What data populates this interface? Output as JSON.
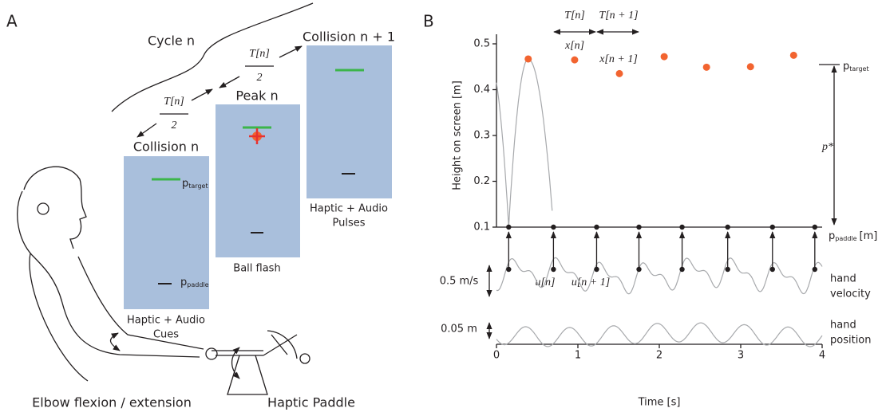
{
  "panel_a": {
    "label": "A",
    "cycle": "Cycle n",
    "collision_next": "Collision n + 1",
    "half_period_1": {
      "numerator": "T[n]",
      "denominator": "2"
    },
    "half_period_2": {
      "numerator": "T[n]",
      "denominator": "2"
    },
    "peak": "Peak n",
    "collision": "Collision n",
    "target": {
      "main": "p",
      "sub": "target"
    },
    "paddle": {
      "main": "p",
      "sub": "paddle"
    },
    "cues": [
      "Haptic + Audio",
      "Cues"
    ],
    "flash": "Ball flash",
    "pulses": [
      "Haptic + Audio",
      "Pulses"
    ],
    "elbow": "Elbow flexion / extension",
    "device": "Haptic Paddle"
  },
  "chart_data": {
    "type": "scatter",
    "label": "B",
    "ylabel": "Height on screen [m]",
    "xlabel": "Time [s]",
    "xlim": [
      0,
      4
    ],
    "ylim": [
      0.1,
      0.5
    ],
    "xticks": [
      0,
      1,
      2,
      3,
      4
    ],
    "yticks": [
      0.1,
      0.2,
      0.3,
      0.4,
      0.5
    ],
    "peaks": {
      "color": "#f26430",
      "x": [
        0.39,
        0.96,
        1.51,
        2.06,
        2.58,
        3.12,
        3.65
      ],
      "values": [
        0.467,
        0.465,
        0.435,
        0.472,
        0.449,
        0.45,
        0.475
      ]
    },
    "collisions": {
      "color": "#231f20",
      "x": [
        0.15,
        0.7,
        1.23,
        1.75,
        2.28,
        2.84,
        3.39,
        3.91
      ],
      "values": [
        0.1,
        0.1,
        0.1,
        0.1,
        0.1,
        0.1,
        0.1,
        0.1
      ]
    },
    "annotations": {
      "period": "T[n]",
      "period_next": "T[n + 1]",
      "peak": "x[n]",
      "peak_next": "x[n + 1]",
      "target": {
        "main": "p",
        "sub": "target"
      },
      "distance": "p*",
      "paddle": {
        "main": "p",
        "sub": "paddle",
        "unit": "[m]"
      },
      "input": "u[n]",
      "input_next": "u[n + 1]",
      "velocity_scale": "0.5 m/s",
      "position_scale": "0.05 m",
      "velocity": [
        "hand",
        "velocity"
      ],
      "position": [
        "hand",
        "position"
      ]
    }
  }
}
